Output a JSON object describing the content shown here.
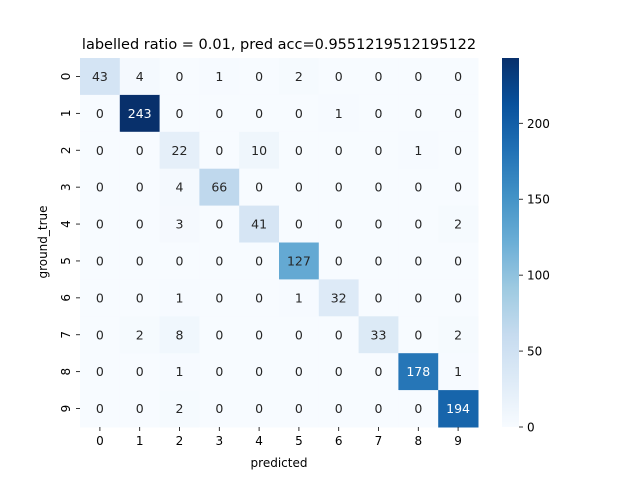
{
  "chart_data": {
    "type": "heatmap",
    "title": "labelled ratio = 0.01, pred acc=0.9551219512195122",
    "xlabel": "predicted",
    "ylabel": "ground_true",
    "x_tick_labels": [
      "0",
      "1",
      "2",
      "3",
      "4",
      "5",
      "6",
      "7",
      "8",
      "9"
    ],
    "y_tick_labels": [
      "0",
      "1",
      "2",
      "3",
      "4",
      "5",
      "6",
      "7",
      "8",
      "9"
    ],
    "matrix": [
      [
        43,
        4,
        0,
        1,
        0,
        2,
        0,
        0,
        0,
        0
      ],
      [
        0,
        243,
        0,
        0,
        0,
        0,
        1,
        0,
        0,
        0
      ],
      [
        0,
        0,
        22,
        0,
        10,
        0,
        0,
        0,
        1,
        0
      ],
      [
        0,
        0,
        4,
        66,
        0,
        0,
        0,
        0,
        0,
        0
      ],
      [
        0,
        0,
        3,
        0,
        41,
        0,
        0,
        0,
        0,
        2
      ],
      [
        0,
        0,
        0,
        0,
        0,
        127,
        0,
        0,
        0,
        0
      ],
      [
        0,
        0,
        1,
        0,
        0,
        1,
        32,
        0,
        0,
        0
      ],
      [
        0,
        2,
        8,
        0,
        0,
        0,
        0,
        33,
        0,
        2
      ],
      [
        0,
        0,
        1,
        0,
        0,
        0,
        0,
        0,
        178,
        1
      ],
      [
        0,
        0,
        2,
        0,
        0,
        0,
        0,
        0,
        0,
        194
      ]
    ],
    "value_range": [
      0,
      243
    ],
    "colormap": "Blues",
    "colorbar_ticks": [
      0,
      50,
      100,
      150,
      200
    ],
    "grid": false
  }
}
